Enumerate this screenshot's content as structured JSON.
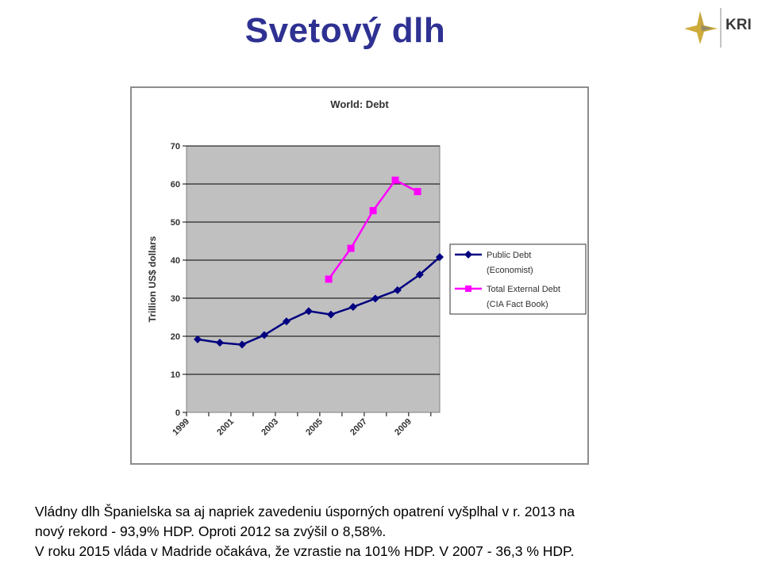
{
  "slide": {
    "title": "Svetový dlh",
    "logo": {
      "text": "KRI",
      "icon": "kri-star-logo-icon",
      "accent": "#c9a227"
    }
  },
  "caption": {
    "lines": [
      "Vládny dlh Španielska sa aj napriek zavedeniu úsporných opatrení vyšplhal v r. 2013 na",
      "nový rekord - 93,9% HDP. Oproti 2012 sa zvýšil o 8,58%.",
      "V roku 2015 vláda v Madride očakáva, že vzrastie na 101% HDP. V 2007 - 36,3 % HDP."
    ]
  },
  "chart_data": {
    "type": "line",
    "title": "World: Debt",
    "xlabel": "",
    "ylabel": "Trillion US$ dollars",
    "ylim": [
      0,
      70
    ],
    "yticks": [
      0,
      10,
      20,
      30,
      40,
      50,
      60,
      70
    ],
    "xlim": [
      1999,
      2010.4
    ],
    "xtick_values": [
      1999,
      2001,
      2003,
      2005,
      2007,
      2009
    ],
    "xtick_labels": [
      "1999",
      "2001",
      "2003",
      "2005",
      "2007",
      "2009"
    ],
    "grid": true,
    "legend": "right",
    "plot_background": "#c0c0c0",
    "series": [
      {
        "name": "Public Debt (Economist)",
        "legend_lines": [
          "Public Debt",
          "(Economist)"
        ],
        "color": "#000080",
        "marker": "diamond",
        "x": [
          1999.5,
          2000.5,
          2001.5,
          2002.5,
          2003.5,
          2004.5,
          2005.5,
          2006.5,
          2007.5,
          2008.5,
          2009.5,
          2010.4
        ],
        "y": [
          19.2,
          18.3,
          17.8,
          20.3,
          23.9,
          26.6,
          25.7,
          27.7,
          29.9,
          32.1,
          36.2,
          40.8
        ]
      },
      {
        "name": "Total External Debt (CIA Fact Book)",
        "legend_lines": [
          "Total External Debt",
          "(CIA Fact Book)"
        ],
        "color": "#ff00ff",
        "marker": "square",
        "x": [
          2005.4,
          2006.4,
          2007.4,
          2008.4,
          2009.4
        ],
        "y": [
          35.0,
          43.1,
          53.0,
          61.0,
          58.0
        ]
      }
    ]
  }
}
